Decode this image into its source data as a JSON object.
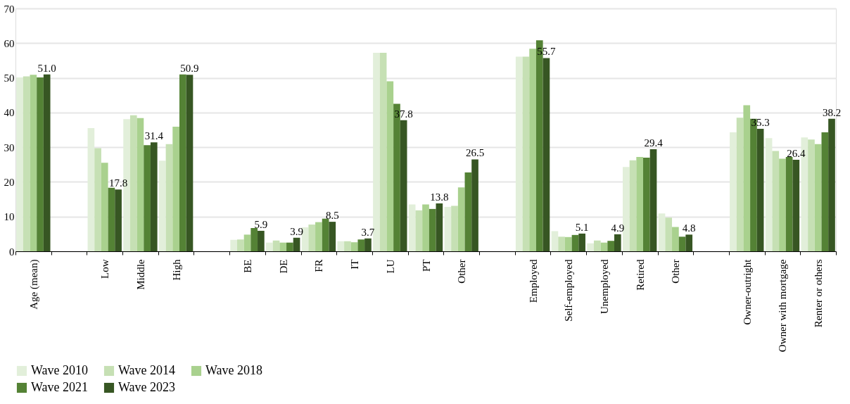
{
  "chart_data": {
    "type": "bar",
    "categories": [
      "Age (mean)",
      null,
      "Low",
      "Middle",
      "High",
      null,
      "BE",
      "DE",
      "FR",
      "IT",
      "LU",
      "PT",
      "Other",
      null,
      "Employed",
      "Self-employed",
      "Unemployed",
      "Retired",
      "Other",
      null,
      "Owner-outright",
      "Owner with mortgage",
      "Renter or others"
    ],
    "series": [
      {
        "name": "Wave 2010",
        "color": "#e2efda",
        "values": [
          50.1,
          null,
          35.5,
          38.1,
          26.1,
          null,
          3.3,
          2.5,
          6.9,
          2.9,
          57.2,
          13.5,
          12.8,
          null,
          56.1,
          5.8,
          2.3,
          24.3,
          10.9,
          null,
          34.3,
          32.6,
          32.8
        ]
      },
      {
        "name": "Wave 2014",
        "color": "#c6e0b4",
        "values": [
          50.4,
          null,
          29.7,
          39.2,
          30.9,
          null,
          3.4,
          3.1,
          7.7,
          2.9,
          57.2,
          11.8,
          13.1,
          null,
          56.1,
          4.2,
          3.1,
          26.2,
          9.7,
          null,
          38.5,
          28.9,
          32.2
        ]
      },
      {
        "name": "Wave 2018",
        "color": "#a9d18e",
        "values": [
          50.9,
          null,
          25.5,
          38.4,
          35.9,
          null,
          4.8,
          2.5,
          8.4,
          2.6,
          49.0,
          13.5,
          18.4,
          null,
          58.4,
          4.1,
          2.5,
          27.2,
          7.0,
          null,
          42.1,
          26.7,
          30.9
        ]
      },
      {
        "name": "Wave 2021",
        "color": "#548235",
        "values": [
          50.1,
          null,
          18.3,
          30.6,
          51.0,
          null,
          6.7,
          2.5,
          9.4,
          3.4,
          42.5,
          12.2,
          22.7,
          null,
          60.8,
          4.7,
          3.0,
          27.0,
          4.2,
          null,
          38.2,
          27.2,
          34.3
        ]
      },
      {
        "name": "Wave 2023",
        "color": "#375623",
        "values": [
          51.0,
          null,
          17.8,
          31.4,
          50.9,
          null,
          5.9,
          3.9,
          8.5,
          3.7,
          37.8,
          13.8,
          26.5,
          null,
          55.7,
          5.1,
          4.9,
          29.4,
          4.8,
          null,
          35.3,
          26.4,
          38.2
        ],
        "value_labels": [
          "51.0",
          null,
          "17.8",
          "31.4",
          "50.9",
          null,
          "5.9",
          "3.9",
          "8.5",
          "3.7",
          "37.8",
          "13.8",
          "26.5",
          null,
          "55.7",
          "5.1",
          "4.9",
          "29.4",
          "4.8",
          null,
          "35.3",
          "26.4",
          "38.2"
        ]
      }
    ],
    "ylim": [
      0,
      70
    ],
    "yticks": [
      0,
      10,
      20,
      30,
      40,
      50,
      60,
      70
    ],
    "grid": "y",
    "legend": "bottom"
  }
}
